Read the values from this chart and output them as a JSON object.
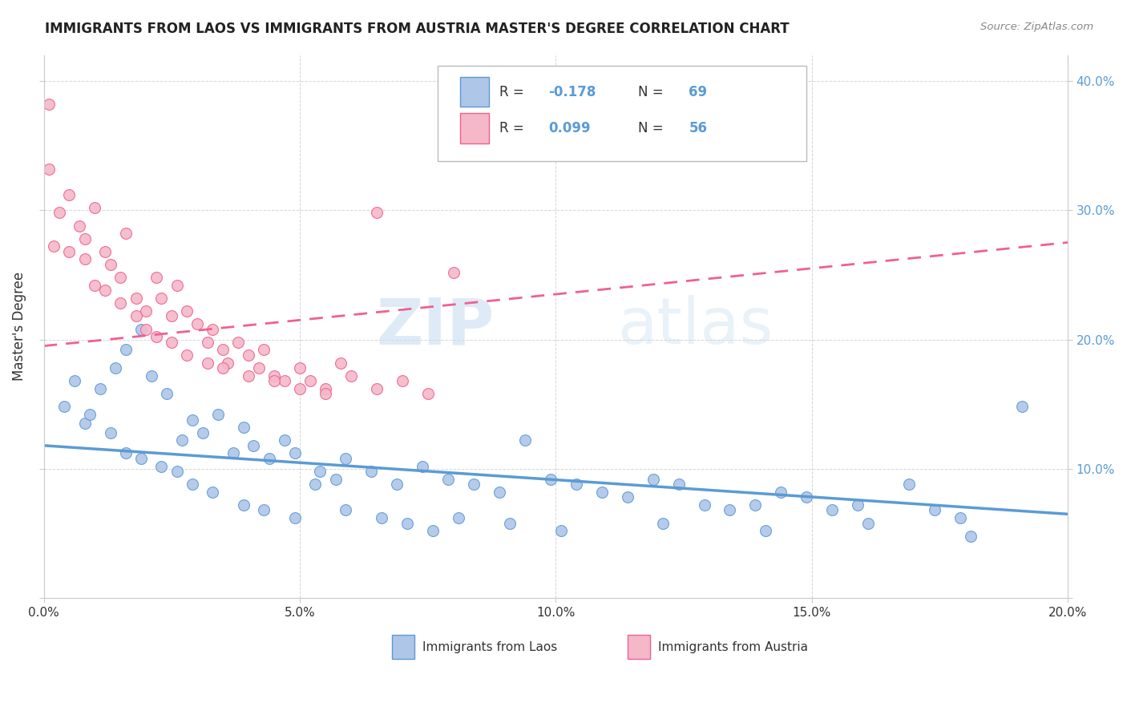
{
  "title": "IMMIGRANTS FROM LAOS VS IMMIGRANTS FROM AUSTRIA MASTER'S DEGREE CORRELATION CHART",
  "source": "Source: ZipAtlas.com",
  "ylabel": "Master's Degree",
  "laos_R": -0.178,
  "laos_N": 69,
  "austria_R": 0.099,
  "austria_N": 56,
  "laos_color": "#aec6e8",
  "austria_color": "#f4b8c8",
  "laos_line_color": "#5b9bd5",
  "austria_line_color": "#f06090",
  "watermark_part1": "ZIP",
  "watermark_part2": "atlas",
  "xmin": 0.0,
  "xmax": 0.2,
  "ymin": 0.0,
  "ymax": 0.42,
  "yticks": [
    0.0,
    0.1,
    0.2,
    0.3,
    0.4
  ],
  "ytick_labels": [
    "",
    "10.0%",
    "20.0%",
    "30.0%",
    "40.0%"
  ],
  "xtick_vals": [
    0.0,
    0.05,
    0.1,
    0.15,
    0.2
  ],
  "xtick_labels": [
    "0.0%",
    "5.0%",
    "10.0%",
    "15.0%",
    "20.0%"
  ],
  "laos_trend": [
    0.118,
    0.065
  ],
  "austria_trend": [
    0.195,
    0.275
  ],
  "laos_points": [
    [
      0.004,
      0.148
    ],
    [
      0.008,
      0.135
    ],
    [
      0.011,
      0.162
    ],
    [
      0.014,
      0.178
    ],
    [
      0.016,
      0.192
    ],
    [
      0.019,
      0.208
    ],
    [
      0.021,
      0.172
    ],
    [
      0.024,
      0.158
    ],
    [
      0.027,
      0.122
    ],
    [
      0.029,
      0.138
    ],
    [
      0.031,
      0.128
    ],
    [
      0.034,
      0.142
    ],
    [
      0.037,
      0.112
    ],
    [
      0.039,
      0.132
    ],
    [
      0.041,
      0.118
    ],
    [
      0.044,
      0.108
    ],
    [
      0.047,
      0.122
    ],
    [
      0.049,
      0.112
    ],
    [
      0.054,
      0.098
    ],
    [
      0.057,
      0.092
    ],
    [
      0.059,
      0.108
    ],
    [
      0.064,
      0.098
    ],
    [
      0.069,
      0.088
    ],
    [
      0.074,
      0.102
    ],
    [
      0.079,
      0.092
    ],
    [
      0.084,
      0.088
    ],
    [
      0.089,
      0.082
    ],
    [
      0.094,
      0.122
    ],
    [
      0.099,
      0.092
    ],
    [
      0.104,
      0.088
    ],
    [
      0.109,
      0.082
    ],
    [
      0.114,
      0.078
    ],
    [
      0.119,
      0.092
    ],
    [
      0.124,
      0.088
    ],
    [
      0.129,
      0.072
    ],
    [
      0.134,
      0.068
    ],
    [
      0.139,
      0.072
    ],
    [
      0.144,
      0.082
    ],
    [
      0.149,
      0.078
    ],
    [
      0.154,
      0.068
    ],
    [
      0.159,
      0.072
    ],
    [
      0.169,
      0.088
    ],
    [
      0.174,
      0.068
    ],
    [
      0.179,
      0.062
    ],
    [
      0.006,
      0.168
    ],
    [
      0.009,
      0.142
    ],
    [
      0.013,
      0.128
    ],
    [
      0.016,
      0.112
    ],
    [
      0.019,
      0.108
    ],
    [
      0.023,
      0.102
    ],
    [
      0.026,
      0.098
    ],
    [
      0.029,
      0.088
    ],
    [
      0.033,
      0.082
    ],
    [
      0.039,
      0.072
    ],
    [
      0.043,
      0.068
    ],
    [
      0.049,
      0.062
    ],
    [
      0.053,
      0.088
    ],
    [
      0.059,
      0.068
    ],
    [
      0.066,
      0.062
    ],
    [
      0.071,
      0.058
    ],
    [
      0.076,
      0.052
    ],
    [
      0.081,
      0.062
    ],
    [
      0.091,
      0.058
    ],
    [
      0.101,
      0.052
    ],
    [
      0.121,
      0.058
    ],
    [
      0.141,
      0.052
    ],
    [
      0.161,
      0.058
    ],
    [
      0.181,
      0.048
    ],
    [
      0.191,
      0.148
    ]
  ],
  "austria_points": [
    [
      0.001,
      0.332
    ],
    [
      0.003,
      0.298
    ],
    [
      0.005,
      0.312
    ],
    [
      0.007,
      0.288
    ],
    [
      0.008,
      0.278
    ],
    [
      0.01,
      0.302
    ],
    [
      0.012,
      0.268
    ],
    [
      0.013,
      0.258
    ],
    [
      0.015,
      0.248
    ],
    [
      0.016,
      0.282
    ],
    [
      0.018,
      0.232
    ],
    [
      0.02,
      0.222
    ],
    [
      0.022,
      0.248
    ],
    [
      0.023,
      0.232
    ],
    [
      0.025,
      0.218
    ],
    [
      0.026,
      0.242
    ],
    [
      0.028,
      0.222
    ],
    [
      0.03,
      0.212
    ],
    [
      0.032,
      0.198
    ],
    [
      0.033,
      0.208
    ],
    [
      0.035,
      0.192
    ],
    [
      0.036,
      0.182
    ],
    [
      0.038,
      0.198
    ],
    [
      0.04,
      0.188
    ],
    [
      0.042,
      0.178
    ],
    [
      0.043,
      0.192
    ],
    [
      0.045,
      0.172
    ],
    [
      0.047,
      0.168
    ],
    [
      0.05,
      0.178
    ],
    [
      0.052,
      0.168
    ],
    [
      0.055,
      0.162
    ],
    [
      0.058,
      0.182
    ],
    [
      0.06,
      0.172
    ],
    [
      0.065,
      0.162
    ],
    [
      0.07,
      0.168
    ],
    [
      0.075,
      0.158
    ],
    [
      0.001,
      0.382
    ],
    [
      0.002,
      0.272
    ],
    [
      0.005,
      0.268
    ],
    [
      0.008,
      0.262
    ],
    [
      0.01,
      0.242
    ],
    [
      0.012,
      0.238
    ],
    [
      0.015,
      0.228
    ],
    [
      0.018,
      0.218
    ],
    [
      0.02,
      0.208
    ],
    [
      0.022,
      0.202
    ],
    [
      0.025,
      0.198
    ],
    [
      0.028,
      0.188
    ],
    [
      0.032,
      0.182
    ],
    [
      0.035,
      0.178
    ],
    [
      0.04,
      0.172
    ],
    [
      0.045,
      0.168
    ],
    [
      0.05,
      0.162
    ],
    [
      0.055,
      0.158
    ],
    [
      0.065,
      0.298
    ],
    [
      0.08,
      0.252
    ]
  ]
}
